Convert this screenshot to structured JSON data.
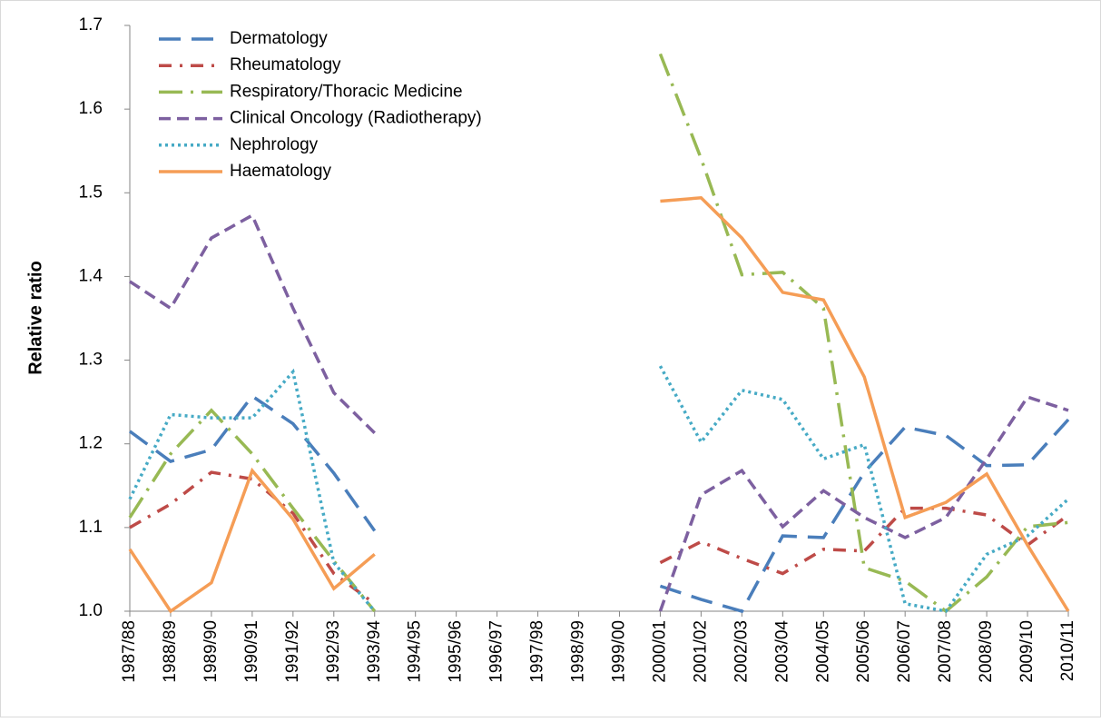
{
  "chart_data": {
    "type": "line",
    "y_label": "Relative ratio",
    "categories": [
      "1987/88",
      "1988/89",
      "1989/90",
      "1990/91",
      "1991/92",
      "1992/93",
      "1993/94",
      "1994/95",
      "1995/96",
      "1996/97",
      "1997/98",
      "1998/99",
      "1999/00",
      "2000/01",
      "2001/02",
      "2002/03",
      "2003/04",
      "2004/05",
      "2005/06",
      "2006/07",
      "2007/08",
      "2008/09",
      "2009/10",
      "2010/11"
    ],
    "series": [
      {
        "name": "Dermatology",
        "color": "#4a7ebb",
        "dash": "long-dash",
        "values": [
          1.215,
          1.179,
          1.193,
          1.257,
          1.224,
          1.165,
          1.096,
          null,
          null,
          null,
          null,
          null,
          null,
          1.03,
          1.014,
          1.0,
          1.09,
          1.088,
          1.166,
          1.22,
          1.21,
          1.174,
          1.175,
          1.229
        ]
      },
      {
        "name": "Rheumatology",
        "color": "#be4b48",
        "dash": "dash-dot",
        "values": [
          1.1,
          1.128,
          1.166,
          1.158,
          1.117,
          1.045,
          1.009,
          null,
          null,
          null,
          null,
          null,
          null,
          1.058,
          1.083,
          1.063,
          1.045,
          1.074,
          1.072,
          1.123,
          1.123,
          1.115,
          1.079,
          1.115
        ]
      },
      {
        "name": "Respiratory/Thoracic Medicine",
        "color": "#98b954",
        "dash": "long-dash-dot",
        "values": [
          1.112,
          1.188,
          1.24,
          1.188,
          1.123,
          1.06,
          1.0,
          null,
          null,
          null,
          null,
          null,
          null,
          1.666,
          1.541,
          1.402,
          1.405,
          1.362,
          1.052,
          1.036,
          1.0,
          1.041,
          1.101,
          1.106
        ]
      },
      {
        "name": "Clinical Oncology (Radiotherapy)",
        "color": "#7d60a0",
        "dash": "dash",
        "values": [
          1.394,
          1.362,
          1.446,
          1.473,
          1.362,
          1.261,
          1.213,
          null,
          null,
          null,
          null,
          null,
          null,
          1.0,
          1.139,
          1.168,
          1.101,
          1.144,
          1.112,
          1.088,
          1.112,
          1.182,
          1.256,
          1.24
        ]
      },
      {
        "name": "Nephrology",
        "color": "#46aac5",
        "dash": "dot",
        "values": [
          1.134,
          1.235,
          1.231,
          1.231,
          1.286,
          1.058,
          1.0,
          null,
          null,
          null,
          null,
          null,
          null,
          1.293,
          1.202,
          1.264,
          1.253,
          1.182,
          1.199,
          1.009,
          1.0,
          1.068,
          1.09,
          1.134
        ]
      },
      {
        "name": "Haematology",
        "color": "#f59d56",
        "dash": "solid",
        "values": [
          1.074,
          1.0,
          1.034,
          1.168,
          1.11,
          1.027,
          1.068,
          null,
          null,
          null,
          null,
          null,
          null,
          1.49,
          1.494,
          1.446,
          1.381,
          1.372,
          1.28,
          1.112,
          1.13,
          1.164,
          1.079,
          1.0
        ]
      }
    ],
    "ylim": [
      1.0,
      1.7
    ],
    "yticks": [
      {
        "value": 1.0,
        "label": "1.0"
      },
      1.1,
      1.2,
      1.3,
      1.4,
      1.5,
      1.6,
      1.7
    ],
    "legend": "top-left"
  }
}
